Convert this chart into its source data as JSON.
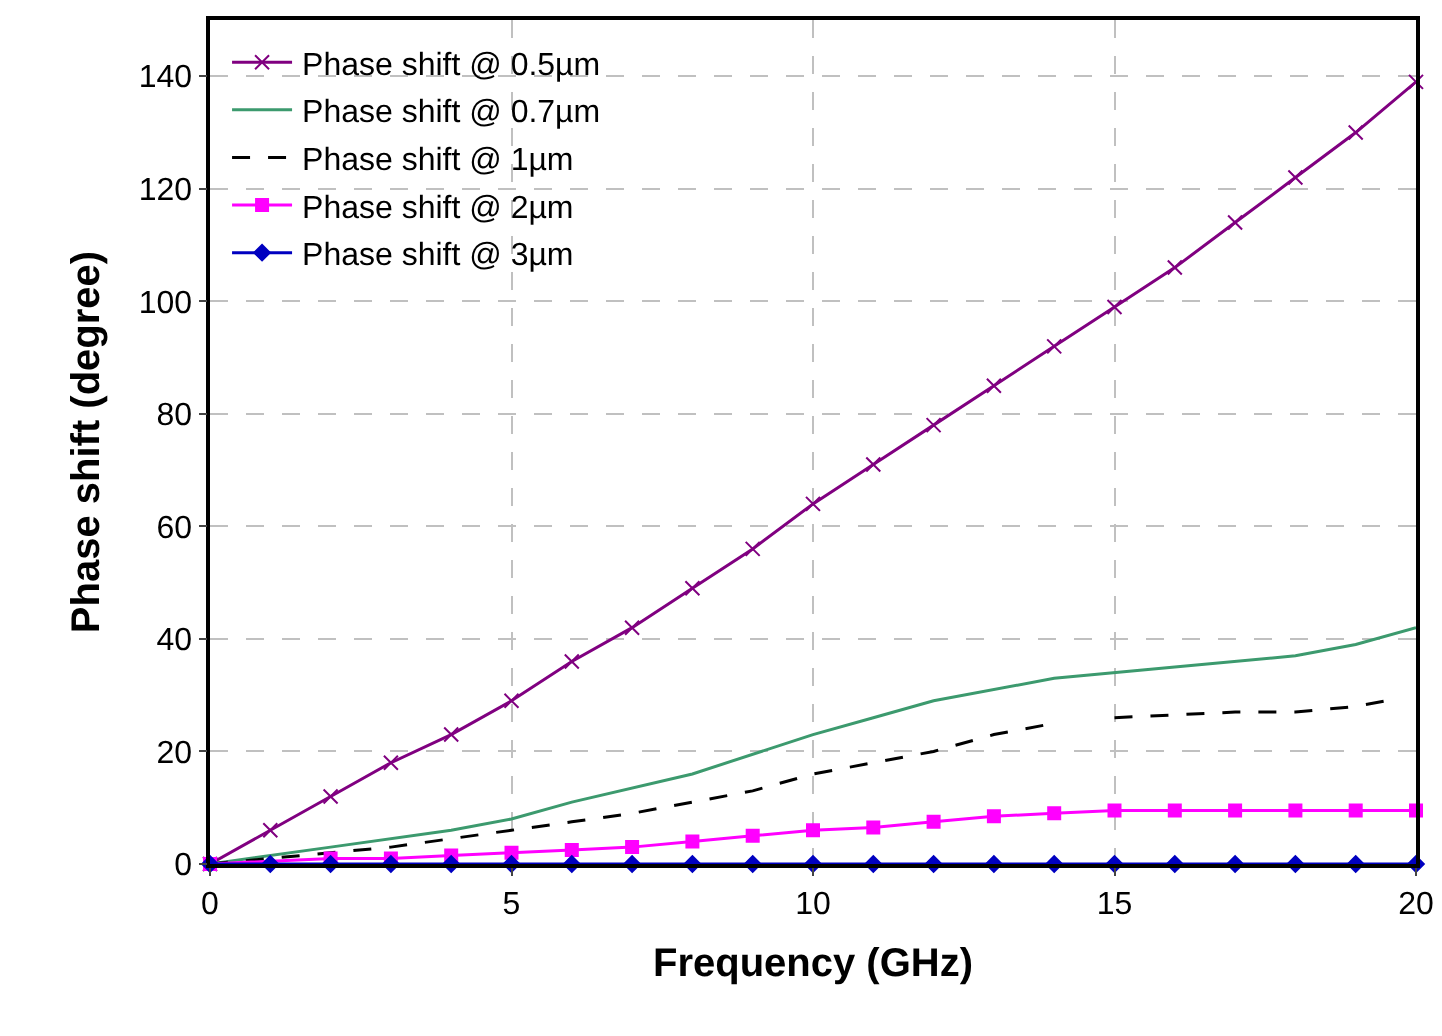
{
  "chart_data": {
    "type": "line",
    "xlabel": "Frequency (GHz)",
    "ylabel": "Phase shift (degree)",
    "xlim": [
      0,
      20
    ],
    "ylim": [
      0,
      150
    ],
    "xticks": [
      0,
      5,
      10,
      15,
      20
    ],
    "yticks": [
      0,
      20,
      40,
      60,
      80,
      100,
      120,
      140
    ],
    "grid": true,
    "legend": "top left",
    "series": [
      {
        "name": "Phase shift @ 0.5µm",
        "color": "#800080",
        "marker": "cross",
        "line_style": "solid",
        "x": [
          0,
          1,
          2,
          3,
          4,
          5,
          6,
          7,
          8,
          9,
          10,
          11,
          12,
          13,
          14,
          15,
          16,
          17,
          18,
          19,
          20
        ],
        "values": [
          0,
          6,
          12,
          18,
          23,
          29,
          36,
          42,
          49,
          56,
          64,
          71,
          78,
          85,
          92,
          99,
          106,
          114,
          122,
          130,
          139
        ]
      },
      {
        "name": "Phase shift @ 0.7µm",
        "color": "#3c9a6e",
        "marker": "none",
        "line_style": "solid",
        "x": [
          0,
          2,
          4,
          5,
          6,
          8,
          10,
          11,
          12,
          14,
          16,
          18,
          19,
          20
        ],
        "values": [
          0,
          3,
          6,
          8,
          11,
          16,
          23,
          26,
          29,
          33,
          35,
          37,
          39,
          42
        ]
      },
      {
        "name": "Phase shift @ 1µm",
        "color": "#000000",
        "marker": "none",
        "line_style": "dashed",
        "x": [
          0,
          1,
          2,
          3,
          4,
          5,
          6,
          7,
          8,
          9,
          10,
          11,
          12,
          13,
          14,
          14.5,
          15,
          16,
          17,
          18,
          19,
          19.5
        ],
        "values": [
          0,
          1,
          2,
          3,
          4.5,
          6,
          7.5,
          9,
          11,
          13,
          16,
          18,
          20,
          23,
          25,
          null,
          26,
          26.5,
          27,
          27,
          28,
          29
        ]
      },
      {
        "name": "Phase shift @ 2µm",
        "color": "#ff00ff",
        "marker": "square",
        "line_style": "solid",
        "x": [
          0,
          2,
          3,
          4,
          5,
          6,
          7,
          8,
          9,
          10,
          11,
          12,
          13,
          14,
          15,
          16,
          17,
          18,
          19,
          20
        ],
        "values": [
          0,
          1,
          1,
          1.5,
          2,
          2.5,
          3,
          4,
          5,
          6,
          6.5,
          7.5,
          8.5,
          9,
          9.5,
          9.5,
          9.5,
          9.5,
          9.5,
          9.5
        ]
      },
      {
        "name": "Phase shift @ 3µm",
        "color": "#0000c0",
        "marker": "diamond",
        "line_style": "solid",
        "x": [
          0,
          1,
          2,
          3,
          4,
          5,
          6,
          7,
          8,
          9,
          10,
          11,
          12,
          13,
          14,
          15,
          16,
          17,
          18,
          19,
          20
        ],
        "values": [
          0,
          0,
          0,
          0,
          0,
          0,
          0,
          0,
          0,
          0,
          0,
          0,
          0,
          0,
          0,
          0,
          0,
          0,
          0,
          0,
          0
        ]
      }
    ]
  }
}
